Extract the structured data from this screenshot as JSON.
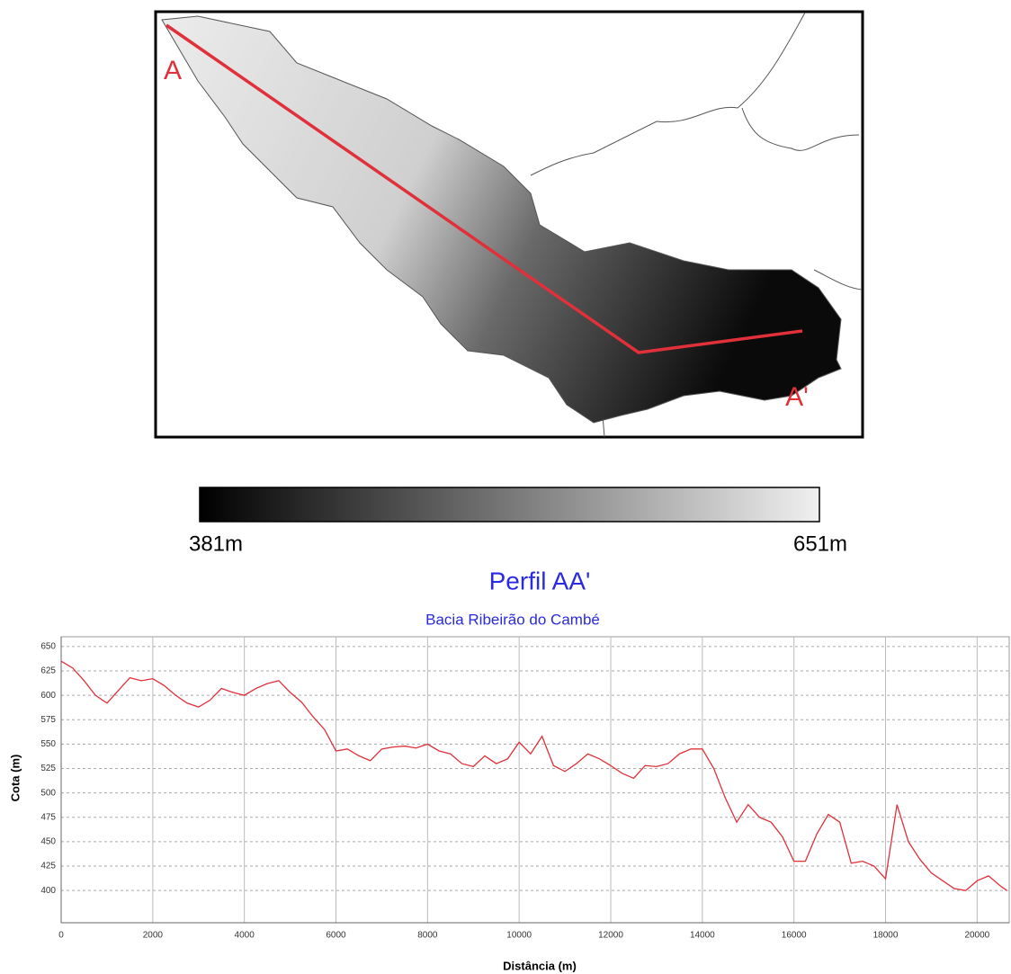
{
  "map": {
    "start_label": "A",
    "end_label": "A'",
    "colorbar": {
      "min_label": "381m",
      "max_label": "651m"
    }
  },
  "chart_data": {
    "type": "line",
    "title": "Perfil AA'",
    "subtitle": "Bacia Ribeirão do Cambé",
    "x_label": "Distância (m)",
    "y_label": "Cota (m)",
    "color": "#e0303a",
    "grid": true,
    "x": [
      0,
      250,
      500,
      750,
      1000,
      1250,
      1500,
      1750,
      2000,
      2250,
      2500,
      2750,
      3000,
      3250,
      3500,
      3750,
      4000,
      4250,
      4500,
      4750,
      5000,
      5250,
      5500,
      5750,
      6000,
      6250,
      6500,
      6750,
      7000,
      7250,
      7500,
      7750,
      8000,
      8250,
      8500,
      8750,
      9000,
      9250,
      9500,
      9750,
      10000,
      10250,
      10500,
      10750,
      11000,
      11250,
      11500,
      11750,
      12000,
      12250,
      12500,
      12750,
      13000,
      13250,
      13500,
      13750,
      14000,
      14250,
      14500,
      14750,
      15000,
      15250,
      15500,
      15750,
      16000,
      16250,
      16500,
      16750,
      17000,
      17250,
      17500,
      17750,
      18000,
      18250,
      18500,
      18750,
      19000,
      19250,
      19500,
      19750,
      20000,
      20250,
      20500,
      20650
    ],
    "values": [
      635,
      628,
      615,
      600,
      592,
      605,
      618,
      615,
      617,
      610,
      600,
      592,
      588,
      595,
      607,
      603,
      600,
      607,
      612,
      615,
      603,
      593,
      578,
      565,
      543,
      545,
      538,
      533,
      545,
      547,
      548,
      546,
      550,
      543,
      540,
      530,
      527,
      538,
      530,
      535,
      552,
      540,
      558,
      528,
      522,
      530,
      540,
      535,
      528,
      520,
      515,
      528,
      527,
      530,
      540,
      545,
      545,
      525,
      495,
      470,
      488,
      475,
      470,
      455,
      430,
      430,
      458,
      478,
      470,
      428,
      430,
      425,
      412,
      488,
      450,
      432,
      418,
      410,
      402,
      400,
      410,
      415,
      405,
      400
    ],
    "xlim": [
      0,
      20700
    ],
    "xticks": [
      0,
      2000,
      4000,
      6000,
      8000,
      10000,
      12000,
      14000,
      16000,
      18000,
      20000
    ],
    "ylim": [
      367,
      660
    ],
    "yticks": [
      400,
      425,
      450,
      475,
      500,
      525,
      550,
      575,
      600,
      625,
      650
    ]
  }
}
